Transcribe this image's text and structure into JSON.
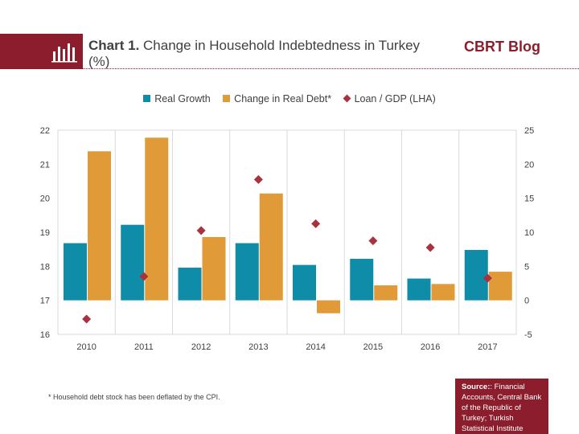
{
  "header": {
    "title_bold": "Chart 1.",
    "title_rest": "Change in Household Indebtedness in Turkey (%)",
    "blog_name": "CBRT Blog",
    "icon": "bar-chart-icon"
  },
  "colors": {
    "brand": "#8c1d2c",
    "real_growth": "#0e8ca8",
    "real_debt": "#e09a38",
    "loan_gdp": "#a83240"
  },
  "footnote": "* Household debt stock has been deflated by the CPI.",
  "source": {
    "label": "Source:",
    "text": ": Financial Accounts, Central Bank of the Republic of Turkey; Turkish Statistical Institute"
  },
  "chart_data": {
    "type": "bar",
    "categories": [
      "2010",
      "2011",
      "2012",
      "2013",
      "2014",
      "2015",
      "2016",
      "2017"
    ],
    "series": [
      {
        "name": "Real Growth",
        "axis": "right",
        "values": [
          8.4,
          11.1,
          4.8,
          8.4,
          5.2,
          6.1,
          3.2,
          7.4
        ]
      },
      {
        "name": "Change in Real Debt*",
        "axis": "right",
        "values": [
          21.9,
          23.9,
          9.3,
          15.7,
          -1.9,
          2.2,
          2.4,
          4.2
        ]
      },
      {
        "name": "Loan / GDP (LHA)",
        "axis": "left",
        "marker": "diamond",
        "values": [
          16.45,
          17.7,
          19.05,
          20.55,
          19.25,
          18.75,
          18.55,
          17.65
        ]
      }
    ],
    "left_axis": {
      "ylim": [
        16,
        22
      ],
      "ticks": [
        "16",
        "17",
        "18",
        "19",
        "20",
        "21",
        "22"
      ]
    },
    "right_axis": {
      "ylim": [
        -5,
        25
      ],
      "ticks": [
        "-5",
        "0",
        "5",
        "10",
        "15",
        "20",
        "25"
      ]
    },
    "legend_position": "top",
    "grid": false
  }
}
